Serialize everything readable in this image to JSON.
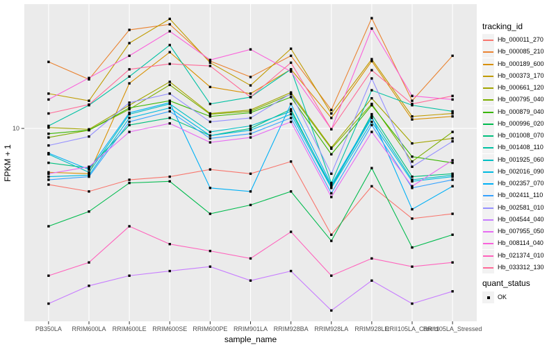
{
  "figure": {
    "y_axis": {
      "title": "FPKM + 1",
      "tick_labels": [
        "10"
      ],
      "tick_values": [
        10
      ],
      "scale": "log10"
    },
    "x_axis": {
      "title": "sample_name"
    },
    "legend": {
      "tracking_title": "tracking_id",
      "quant_title": "quant_status",
      "quant_entries": [
        {
          "label": "OK",
          "marker": "black-square"
        }
      ]
    },
    "colors": {
      "panel_bg": "#EBEBEB",
      "grid": "#FFFFFF",
      "tick_text": "#4D4D4D",
      "axis_text": "#000000",
      "point": "#000000",
      "legend_key_bg": "#F2F2F2"
    }
  },
  "chart_data": {
    "type": "line",
    "title": "",
    "xlabel": "sample_name",
    "ylabel": "FPKM + 1",
    "y_scale": "log10",
    "ylim": [
      1.058,
      42.5
    ],
    "y_ticks": [
      10
    ],
    "grid": "major",
    "legend_position": "right",
    "point_marker": "filled-black-square",
    "categories": [
      "PB350LA",
      "RRIM600LA",
      "RRIM600LE",
      "RRIM600SE",
      "RRIM600PE",
      "RRIM901LA",
      "RRIM928BA",
      "RRIM928LA",
      "RRIM928LE",
      "RRII105LA_Control",
      "RRII105LA_Stressed"
    ],
    "series": [
      {
        "name": "Hb_000011_270",
        "color": "#F8766D",
        "values": [
          5.2,
          4.8,
          5.5,
          5.7,
          6.2,
          5.9,
          6.8,
          2.9,
          5.1,
          3.5,
          3.7
        ]
      },
      {
        "name": "Hb_000085_210",
        "color": "#EA8331",
        "values": [
          21.7,
          17.7,
          31.5,
          33.6,
          21.9,
          18.2,
          23.3,
          12.4,
          36.1,
          13.8,
          23.3
        ]
      },
      {
        "name": "Hb_000189_600",
        "color": "#D89000",
        "values": [
          6.0,
          5.9,
          16.9,
          24.3,
          16.2,
          15.0,
          19.9,
          11.3,
          21.9,
          11.1,
          11.5
        ]
      },
      {
        "name": "Hb_000373_170",
        "color": "#C09B00",
        "values": [
          15.0,
          13.8,
          27.0,
          35.8,
          21.5,
          16.5,
          25.3,
          11.9,
          22.4,
          11.5,
          11.9
        ]
      },
      {
        "name": "Hb_000661_120",
        "color": "#A3A500",
        "values": [
          10.1,
          9.9,
          13.1,
          17.2,
          11.9,
          12.4,
          15.2,
          8.0,
          14.2,
          8.4,
          8.9
        ]
      },
      {
        "name": "Hb_000795_040",
        "color": "#7CAE00",
        "values": [
          9.0,
          9.8,
          12.5,
          16.6,
          11.8,
          12.2,
          14.9,
          7.9,
          13.3,
          6.8,
          9.6
        ]
      },
      {
        "name": "Hb_000879_040",
        "color": "#39B600",
        "values": [
          9.4,
          9.8,
          12.7,
          13.8,
          11.5,
          12.0,
          14.4,
          7.4,
          13.1,
          7.2,
          6.7
        ]
      },
      {
        "name": "Hb_000996_020",
        "color": "#00BB4E",
        "values": [
          3.2,
          3.8,
          5.3,
          5.4,
          3.7,
          4.1,
          4.8,
          2.7,
          6.3,
          2.5,
          2.9
        ]
      },
      {
        "name": "Hb_001008_070",
        "color": "#00BF7D",
        "values": [
          6.7,
          6.3,
          10.4,
          11.3,
          9.2,
          10.0,
          12.5,
          5.0,
          11.8,
          5.7,
          5.9
        ]
      },
      {
        "name": "Hb_001408_110",
        "color": "#00C1A3",
        "values": [
          10.3,
          13.1,
          18.3,
          26.4,
          13.3,
          14.4,
          19.9,
          5.3,
          15.6,
          13.1,
          12.2
        ]
      },
      {
        "name": "Hb_001925_060",
        "color": "#00BFC4",
        "values": [
          7.4,
          6.0,
          11.8,
          13.3,
          9.6,
          10.3,
          12.2,
          5.1,
          11.3,
          5.5,
          5.8
        ]
      },
      {
        "name": "Hb_002016_090",
        "color": "#00BAE0",
        "values": [
          5.7,
          5.8,
          11.3,
          12.7,
          9.2,
          9.8,
          11.8,
          5.0,
          10.8,
          5.4,
          5.7
        ]
      },
      {
        "name": "Hb_002357_070",
        "color": "#00B0F6",
        "values": [
          7.5,
          6.2,
          12.0,
          13.5,
          5.0,
          4.8,
          13.3,
          5.2,
          11.5,
          3.9,
          5.1
        ]
      },
      {
        "name": "Hb_002411_110",
        "color": "#35A2FF",
        "values": [
          5.5,
          5.7,
          10.8,
          12.2,
          8.9,
          9.4,
          11.3,
          4.7,
          10.4,
          5.0,
          5.5
        ]
      },
      {
        "name": "Hb_002581_010",
        "color": "#9590FF",
        "values": [
          8.2,
          9.1,
          13.5,
          15.0,
          10.8,
          11.3,
          15.0,
          5.9,
          17.9,
          6.4,
          8.6
        ]
      },
      {
        "name": "Hb_004544_040",
        "color": "#C77CFF",
        "values": [
          1.3,
          1.6,
          1.8,
          1.9,
          2.0,
          1.7,
          1.9,
          1.2,
          1.7,
          1.3,
          1.5
        ]
      },
      {
        "name": "Hb_007955_050",
        "color": "#E76BF3",
        "values": [
          5.9,
          6.4,
          9.6,
          10.6,
          8.5,
          9.0,
          10.8,
          4.5,
          9.6,
          5.1,
          6.9
        ]
      },
      {
        "name": "Hb_008114_040",
        "color": "#FA62DB",
        "values": [
          14.0,
          18.0,
          23.3,
          31.0,
          22.2,
          25.1,
          19.4,
          9.9,
          32.0,
          14.6,
          14.0
        ]
      },
      {
        "name": "Hb_021374_010",
        "color": "#FF62BC",
        "values": [
          1.8,
          2.1,
          3.2,
          2.6,
          2.4,
          2.2,
          3.0,
          1.8,
          2.2,
          2.0,
          2.1
        ]
      },
      {
        "name": "Hb_033312_130",
        "color": "#FF6A98",
        "values": [
          11.9,
          13.2,
          19.9,
          21.2,
          20.7,
          14.4,
          21.5,
          9.9,
          19.7,
          13.3,
          14.6
        ]
      }
    ],
    "quant_status": {
      "title": "quant_status",
      "entries": [
        "OK"
      ]
    }
  }
}
